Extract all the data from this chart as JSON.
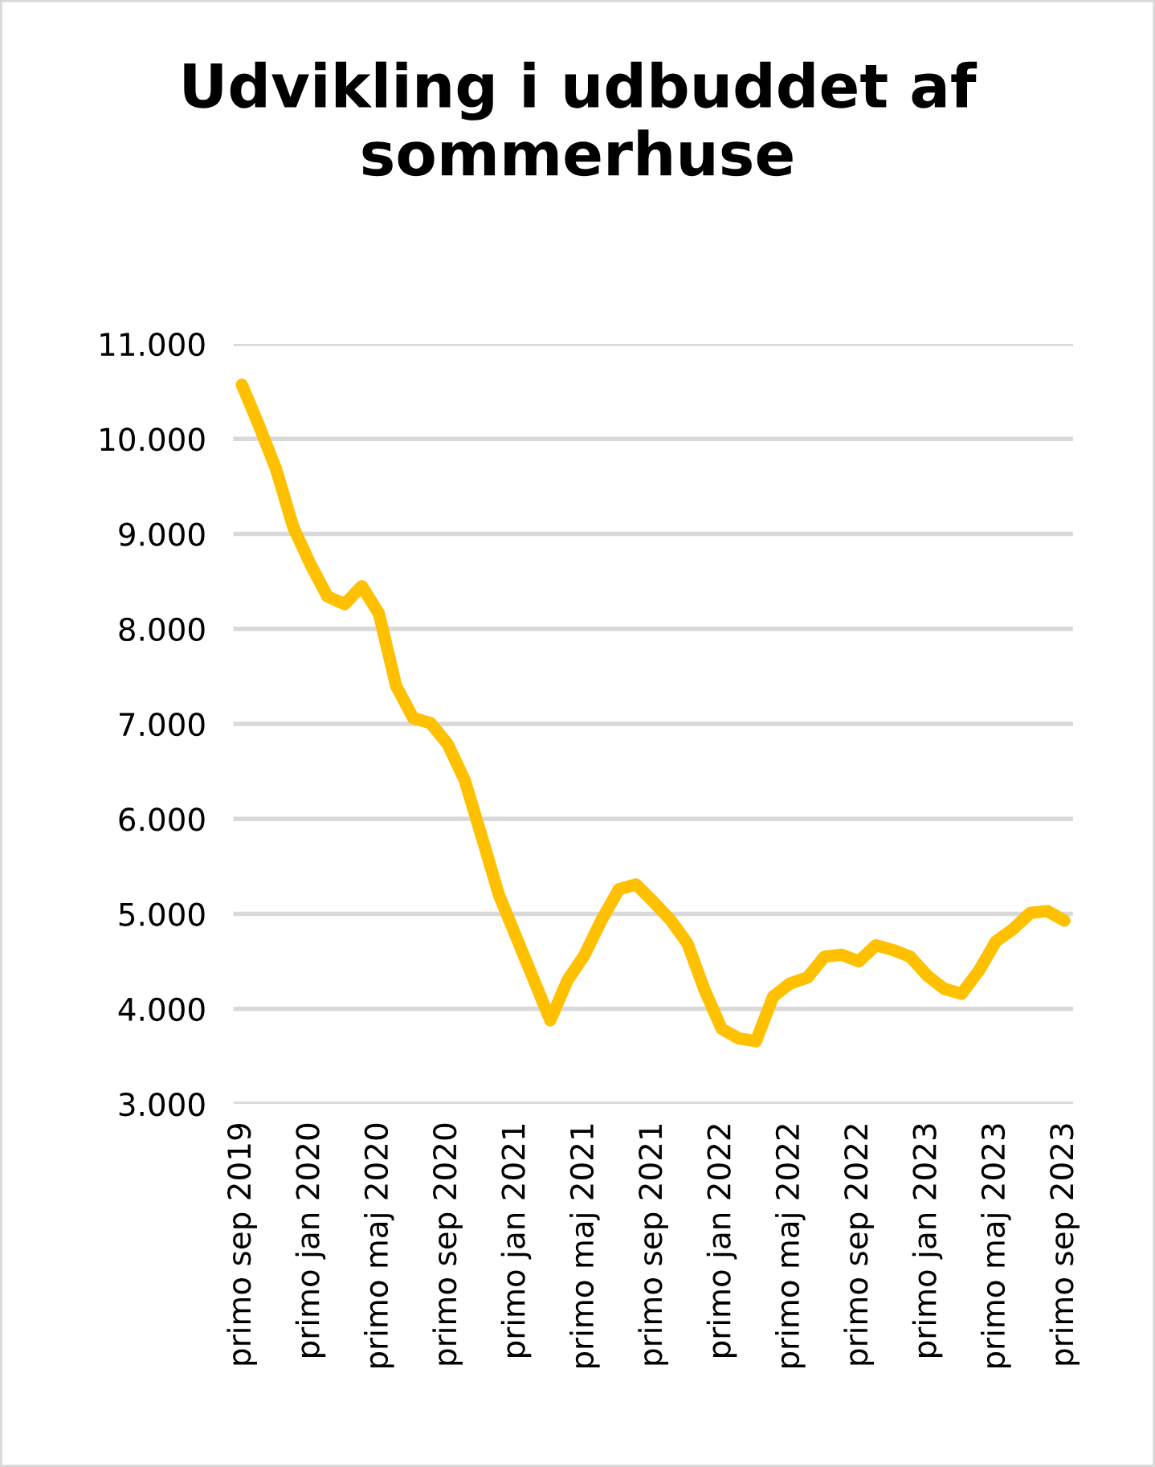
{
  "chart_data": {
    "type": "line",
    "title": "Udvikling i udbuddet af sommerhuse",
    "categories": [
      "primo sep 2019",
      null,
      null,
      null,
      "primo jan 2020",
      null,
      null,
      null,
      "primo maj 2020",
      null,
      null,
      null,
      "primo sep 2020",
      null,
      null,
      null,
      "primo jan 2021",
      null,
      null,
      null,
      "primo maj 2021",
      null,
      null,
      null,
      "primo sep 2021",
      null,
      null,
      null,
      "primo jan 2022",
      null,
      null,
      null,
      "primo maj 2022",
      null,
      null,
      null,
      "primo sep 2022",
      null,
      null,
      null,
      "primo jan 2023",
      null,
      null,
      null,
      "primo maj 2023",
      null,
      null,
      null,
      "primo sep 2023"
    ],
    "series": [
      {
        "color": "#ffc000",
        "values": [
          10570,
          10140,
          9680,
          9070,
          8680,
          8340,
          8260,
          8450,
          8160,
          7400,
          7060,
          7010,
          6790,
          6410,
          5810,
          5200,
          4760,
          4320,
          3880,
          4300,
          4570,
          4940,
          5260,
          5310,
          5130,
          4940,
          4690,
          4200,
          3790,
          3690,
          3660,
          4130,
          4270,
          4330,
          4550,
          4570,
          4500,
          4670,
          4620,
          4550,
          4350,
          4210,
          4160,
          4400,
          4710,
          4840,
          5010,
          5030,
          4930
        ]
      }
    ],
    "ylim": [
      3000,
      11000
    ],
    "yticks": [
      {
        "value": 3000,
        "label": "3.000"
      },
      {
        "value": 4000,
        "label": "4.000"
      },
      {
        "value": 5000,
        "label": "5.000"
      },
      {
        "value": 6000,
        "label": "6.000"
      },
      {
        "value": 7000,
        "label": "7.000"
      },
      {
        "value": 8000,
        "label": "8.000"
      },
      {
        "value": 9000,
        "label": "9.000"
      },
      {
        "value": 10000,
        "label": "10.000"
      },
      {
        "value": 11000,
        "label": "11.000"
      }
    ],
    "grid": "y",
    "legend": false,
    "marker": "none",
    "line_style": "solid"
  }
}
